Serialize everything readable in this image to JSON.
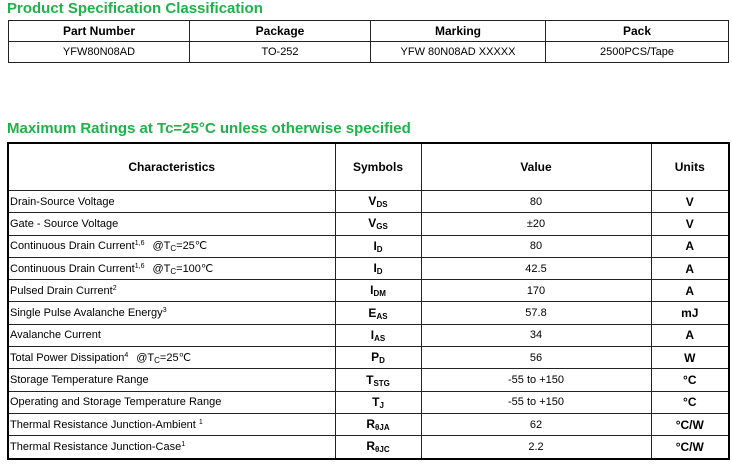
{
  "section1": {
    "title": "Product Specification Classification",
    "headers": [
      "Part Number",
      "Package",
      "Marking",
      "Pack"
    ],
    "row": [
      "YFW80N08AD",
      "TO-252",
      "YFW 80N08AD XXXXX",
      "2500PCS/Tape"
    ]
  },
  "section2": {
    "title": "Maximum Ratings at Tc=25°C unless otherwise specified",
    "headers": [
      "Characteristics",
      "Symbols",
      "Value",
      "Units"
    ],
    "rows": [
      {
        "name": "Drain-Source Voltage",
        "sup": "",
        "cond_pre": "",
        "cond_sub": "",
        "cond_post": "",
        "sym": "V",
        "sym_sub": "DS",
        "value": "80",
        "unit": "V"
      },
      {
        "name": "Gate - Source Voltage",
        "sup": "",
        "cond_pre": "",
        "cond_sub": "",
        "cond_post": "",
        "sym": "V",
        "sym_sub": "GS",
        "value": "±20",
        "unit": "V"
      },
      {
        "name": "Continuous Drain Current",
        "sup": "1,6",
        "cond_pre": "@T",
        "cond_sub": "C",
        "cond_post": "=25℃",
        "sym": "I",
        "sym_sub": "D",
        "value": "80",
        "unit": "A"
      },
      {
        "name": "Continuous Drain Current",
        "sup": "1,6",
        "cond_pre": "@T",
        "cond_sub": "C",
        "cond_post": "=100℃",
        "sym": "I",
        "sym_sub": "D",
        "value": "42.5",
        "unit": "A"
      },
      {
        "name": "Pulsed Drain Current",
        "sup": "2",
        "cond_pre": "",
        "cond_sub": "",
        "cond_post": "",
        "sym": "I",
        "sym_sub": "DM",
        "value": "170",
        "unit": "A"
      },
      {
        "name": "Single Pulse Avalanche Energy",
        "sup": "3",
        "cond_pre": "",
        "cond_sub": "",
        "cond_post": "",
        "sym": "E",
        "sym_sub": "AS",
        "value": "57.8",
        "unit": "mJ"
      },
      {
        "name": "Avalanche Current",
        "sup": "",
        "cond_pre": "",
        "cond_sub": "",
        "cond_post": "",
        "sym": "I",
        "sym_sub": "AS",
        "value": "34",
        "unit": "A"
      },
      {
        "name": "Total Power Dissipation",
        "sup": "4",
        "cond_pre": "@T",
        "cond_sub": "C",
        "cond_post": "=25℃",
        "sym": "P",
        "sym_sub": "D",
        "value": "56",
        "unit": "W"
      },
      {
        "name": "Storage Temperature Range",
        "sup": "",
        "cond_pre": "",
        "cond_sub": "",
        "cond_post": "",
        "sym": "T",
        "sym_sub": "STG",
        "value": "-55 to +150",
        "unit": "°C"
      },
      {
        "name": "Operating and Storage Temperature Range",
        "sup": "",
        "cond_pre": "",
        "cond_sub": "",
        "cond_post": "",
        "sym": "T",
        "sym_sub": "J",
        "value": "-55 to +150",
        "unit": "°C"
      },
      {
        "name": "Thermal Resistance Junction-Ambient ",
        "sup": "1",
        "cond_pre": "",
        "cond_sub": "",
        "cond_post": "",
        "sym": "R",
        "sym_sub": "θJA",
        "value": "62",
        "unit": "°C/W"
      },
      {
        "name": "Thermal Resistance Junction-Case",
        "sup": "1",
        "cond_pre": "",
        "cond_sub": "",
        "cond_post": "",
        "sym": "R",
        "sym_sub": "θJC",
        "value": "2.2",
        "unit": "°C/W"
      }
    ]
  }
}
